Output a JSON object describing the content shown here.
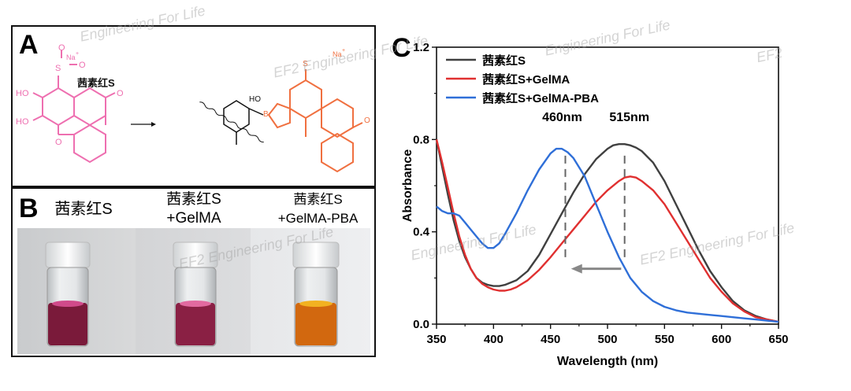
{
  "panels": {
    "a": {
      "label": "A",
      "na": "Na",
      "na_plus": "+",
      "so3": "S",
      "o": "O",
      "oh": "HO",
      "ho2": "HO",
      "b": "B",
      "ho_b": "HO",
      "title": "茜素红S"
    },
    "b": {
      "label": "B",
      "vials": [
        {
          "line1": "茜素红S",
          "line2": ""
        },
        {
          "line1": "茜素红S",
          "line2": "+GelMA"
        },
        {
          "line1": "茜素红S",
          "line2": "+GelMA-PBA"
        }
      ]
    },
    "c": {
      "label": "C"
    }
  },
  "watermark": "Engineering For Life",
  "watermark_logo": "EF2",
  "chart_data": {
    "type": "line",
    "xlabel": "Wavelength (nm)",
    "ylabel": "Absorbance",
    "xlim": [
      350,
      650
    ],
    "ylim": [
      0.0,
      1.2
    ],
    "xticks": [
      350,
      400,
      450,
      500,
      550,
      600,
      650
    ],
    "yticks": [
      0.0,
      0.4,
      0.8,
      1.2
    ],
    "ytick_labels": [
      "0.0",
      "0.4",
      "0.8",
      "1.2"
    ],
    "annotations": [
      {
        "text": "460nm",
        "x": 463
      },
      {
        "text": "515nm",
        "x": 515
      }
    ],
    "arrow": {
      "from": 512,
      "to": 468,
      "y": 0.24
    },
    "series": [
      {
        "name": "茜素红S",
        "color": "#404040",
        "x": [
          350,
          355,
          360,
          365,
          370,
          375,
          380,
          385,
          390,
          395,
          400,
          405,
          410,
          420,
          430,
          440,
          450,
          460,
          470,
          480,
          490,
          500,
          505,
          510,
          515,
          520,
          525,
          530,
          540,
          550,
          560,
          570,
          580,
          590,
          600,
          610,
          620,
          630,
          640,
          650
        ],
        "y": [
          0.8,
          0.68,
          0.56,
          0.45,
          0.36,
          0.29,
          0.24,
          0.2,
          0.18,
          0.17,
          0.165,
          0.165,
          0.17,
          0.19,
          0.23,
          0.3,
          0.39,
          0.48,
          0.57,
          0.65,
          0.715,
          0.76,
          0.775,
          0.78,
          0.78,
          0.775,
          0.765,
          0.75,
          0.7,
          0.62,
          0.52,
          0.42,
          0.32,
          0.23,
          0.16,
          0.1,
          0.06,
          0.035,
          0.02,
          0.01
        ]
      },
      {
        "name": "茜素红S+GelMA",
        "color": "#e03030",
        "x": [
          350,
          355,
          360,
          365,
          370,
          375,
          380,
          385,
          390,
          395,
          400,
          405,
          410,
          415,
          420,
          430,
          440,
          450,
          460,
          470,
          480,
          490,
          500,
          510,
          515,
          520,
          525,
          530,
          540,
          550,
          560,
          570,
          580,
          590,
          600,
          610,
          620,
          630,
          640,
          650
        ],
        "y": [
          0.8,
          0.7,
          0.59,
          0.48,
          0.38,
          0.3,
          0.24,
          0.2,
          0.175,
          0.16,
          0.15,
          0.145,
          0.145,
          0.15,
          0.16,
          0.19,
          0.235,
          0.29,
          0.35,
          0.41,
          0.47,
          0.53,
          0.58,
          0.62,
          0.635,
          0.64,
          0.635,
          0.62,
          0.58,
          0.52,
          0.44,
          0.36,
          0.28,
          0.2,
          0.14,
          0.09,
          0.055,
          0.03,
          0.02,
          0.01
        ]
      },
      {
        "name": "茜素红S+GelMA-PBA",
        "color": "#2f6fd8",
        "x": [
          350,
          355,
          360,
          365,
          370,
          375,
          380,
          385,
          390,
          395,
          400,
          405,
          410,
          420,
          430,
          440,
          450,
          455,
          460,
          465,
          470,
          480,
          490,
          500,
          510,
          520,
          530,
          540,
          550,
          560,
          570,
          580,
          590,
          600,
          610,
          620,
          630,
          640,
          650
        ],
        "y": [
          0.51,
          0.49,
          0.48,
          0.48,
          0.47,
          0.44,
          0.41,
          0.38,
          0.35,
          0.33,
          0.33,
          0.35,
          0.39,
          0.48,
          0.58,
          0.67,
          0.74,
          0.76,
          0.76,
          0.745,
          0.72,
          0.64,
          0.52,
          0.4,
          0.29,
          0.2,
          0.14,
          0.1,
          0.075,
          0.06,
          0.05,
          0.045,
          0.04,
          0.035,
          0.03,
          0.025,
          0.02,
          0.015,
          0.01
        ]
      }
    ]
  }
}
